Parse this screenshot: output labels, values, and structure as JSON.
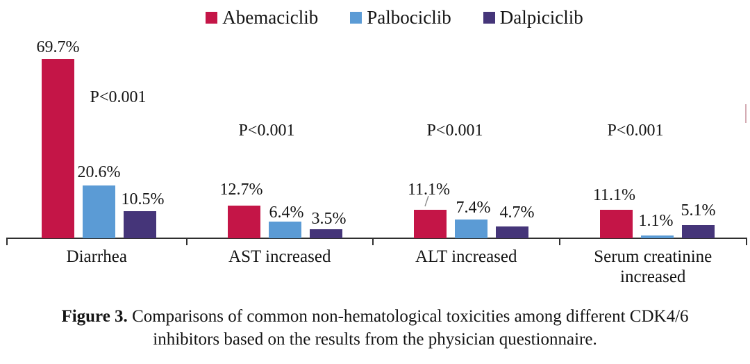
{
  "chart_data": {
    "type": "bar",
    "categories": [
      "Diarrhea",
      "AST increased",
      "ALT increased",
      "Serum creatinine increased"
    ],
    "series": [
      {
        "name": "Abemaciclib",
        "color": "#c41547",
        "values": [
          69.7,
          12.7,
          11.1,
          11.1
        ]
      },
      {
        "name": "Palbociclib",
        "color": "#5b9bd5",
        "values": [
          20.6,
          6.4,
          7.4,
          1.1
        ]
      },
      {
        "name": "Dalpiciclib",
        "color": "#453579",
        "values": [
          10.5,
          3.5,
          4.7,
          5.1
        ]
      }
    ],
    "value_label_format": "percent",
    "p_values": [
      "P<0.001",
      "P<0.001",
      "P<0.001",
      "P<0.001"
    ],
    "title": "",
    "xlabel": "",
    "ylabel": "",
    "ylim": [
      0,
      75
    ],
    "grid": false,
    "legend_position": "top"
  },
  "caption": {
    "line1_bold": "Figure 3.",
    "line1_rest": " Comparisons of common non-hematological toxicities among different CDK4/6",
    "line2": "inhibitors based on the results from the physician questionnaire."
  }
}
